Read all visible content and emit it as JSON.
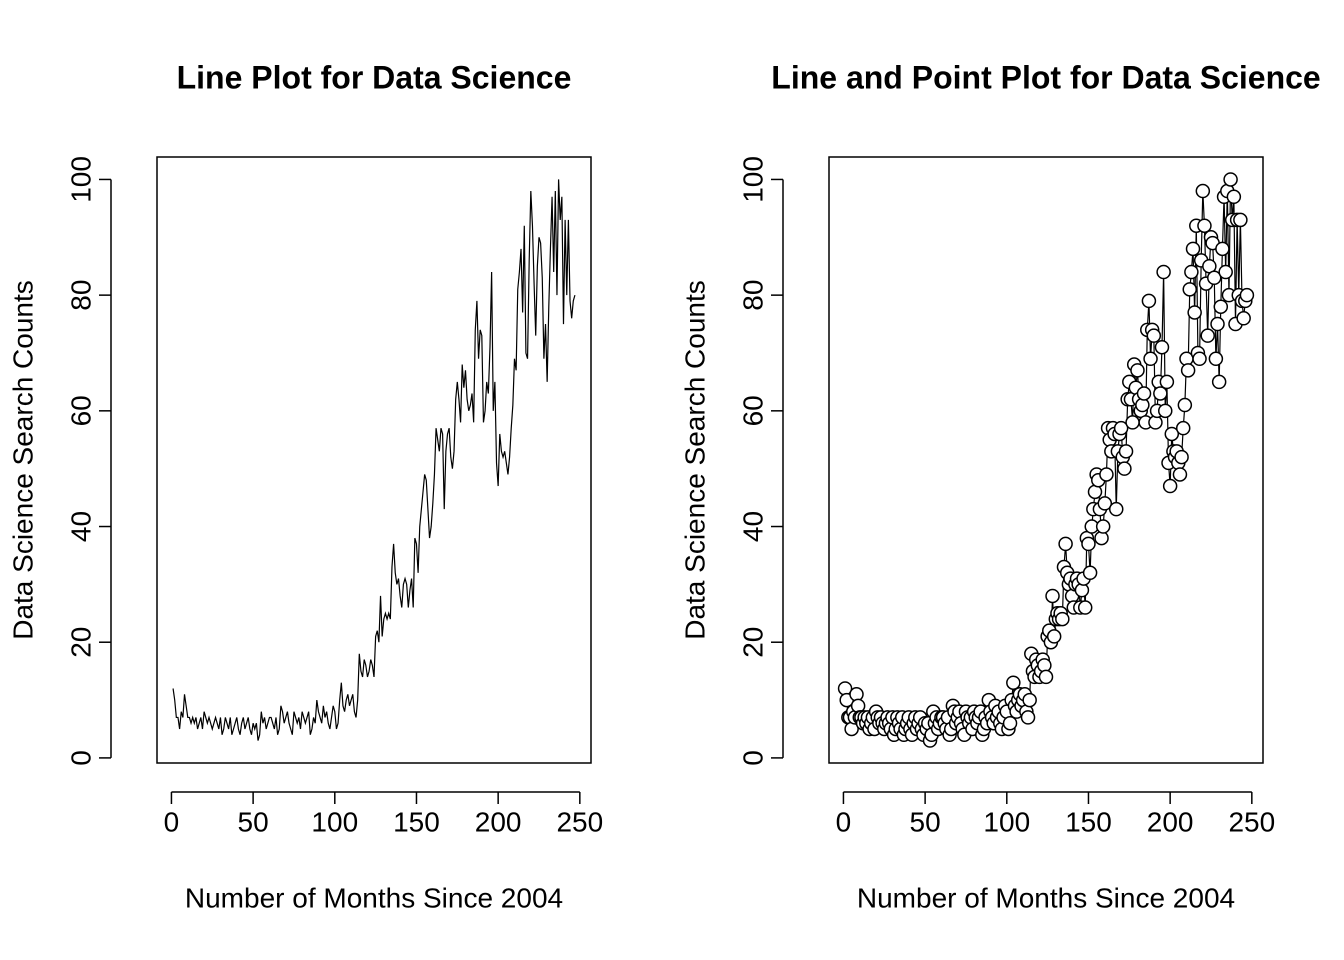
{
  "chart_data": [
    {
      "type": "line",
      "title": "Line Plot for Data Science",
      "x_label": "Number of Months Since 2004",
      "y_label": "Data Science Search Counts",
      "x": [
        1,
        2,
        3,
        4,
        5,
        6,
        7,
        8,
        9,
        10,
        11,
        12,
        13,
        14,
        15,
        16,
        17,
        18,
        19,
        20,
        21,
        22,
        23,
        24,
        25,
        26,
        27,
        28,
        29,
        30,
        31,
        32,
        33,
        34,
        35,
        36,
        37,
        38,
        39,
        40,
        41,
        42,
        43,
        44,
        45,
        46,
        47,
        48,
        49,
        50,
        51,
        52,
        53,
        54,
        55,
        56,
        57,
        58,
        59,
        60,
        61,
        62,
        63,
        64,
        65,
        66,
        67,
        68,
        69,
        70,
        71,
        72,
        73,
        74,
        75,
        76,
        77,
        78,
        79,
        80,
        81,
        82,
        83,
        84,
        85,
        86,
        87,
        88,
        89,
        90,
        91,
        92,
        93,
        94,
        95,
        96,
        97,
        98,
        99,
        100,
        101,
        102,
        103,
        104,
        105,
        106,
        107,
        108,
        109,
        110,
        111,
        112,
        113,
        114,
        115,
        116,
        117,
        118,
        119,
        120,
        121,
        122,
        123,
        124,
        125,
        126,
        127,
        128,
        129,
        130,
        131,
        132,
        133,
        134,
        135,
        136,
        137,
        138,
        139,
        140,
        141,
        142,
        143,
        144,
        145,
        146,
        147,
        148,
        149,
        150,
        151,
        152,
        153,
        154,
        155,
        156,
        157,
        158,
        159,
        160,
        161,
        162,
        163,
        164,
        165,
        166,
        167,
        168,
        169,
        170,
        171,
        172,
        173,
        174,
        175,
        176,
        177,
        178,
        179,
        180,
        181,
        182,
        183,
        184,
        185,
        186,
        187,
        188,
        189,
        190,
        191,
        192,
        193,
        194,
        195,
        196,
        197,
        198,
        199,
        200,
        201,
        202,
        203,
        204,
        205,
        206,
        207,
        208,
        209,
        210,
        211,
        212,
        213,
        214,
        215,
        216,
        217,
        218,
        219,
        220,
        221,
        222,
        223,
        224,
        225,
        226,
        227,
        228,
        229,
        230,
        231,
        232,
        233,
        234,
        235,
        236,
        237,
        238,
        239,
        240,
        241,
        242,
        243,
        244,
        245,
        246,
        247
      ],
      "values": [
        12,
        10,
        7,
        7,
        5,
        8,
        7,
        11,
        9,
        7,
        7,
        6,
        7,
        6,
        7,
        5,
        6,
        7,
        5,
        8,
        7,
        6,
        7,
        6,
        5,
        6,
        7,
        6,
        5,
        7,
        4,
        5,
        7,
        6,
        5,
        7,
        4,
        5,
        6,
        7,
        5,
        4,
        6,
        7,
        5,
        6,
        7,
        5,
        4,
        6,
        5,
        6,
        3,
        4,
        8,
        6,
        7,
        5,
        6,
        7,
        7,
        6,
        5,
        7,
        4,
        5,
        9,
        8,
        6,
        7,
        8,
        6,
        5,
        4,
        8,
        7,
        6,
        7,
        5,
        8,
        7,
        6,
        7,
        8,
        4,
        5,
        7,
        6,
        10,
        8,
        7,
        6,
        9,
        7,
        8,
        6,
        5,
        7,
        9,
        8,
        5,
        6,
        10,
        13,
        9,
        8,
        10,
        11,
        9,
        10,
        11,
        8,
        7,
        10,
        18,
        15,
        14,
        17,
        16,
        14,
        15,
        17,
        16,
        14,
        21,
        22,
        20,
        28,
        21,
        24,
        25,
        24,
        25,
        24,
        33,
        37,
        32,
        30,
        31,
        28,
        26,
        30,
        31,
        30,
        26,
        29,
        31,
        26,
        38,
        37,
        32,
        40,
        43,
        46,
        49,
        48,
        43,
        38,
        40,
        44,
        49,
        57,
        55,
        53,
        57,
        56,
        43,
        53,
        56,
        57,
        52,
        50,
        53,
        62,
        65,
        62,
        58,
        68,
        64,
        67,
        62,
        60,
        61,
        63,
        58,
        74,
        79,
        69,
        74,
        73,
        58,
        60,
        65,
        63,
        71,
        84,
        60,
        65,
        51,
        47,
        56,
        53,
        52,
        53,
        51,
        49,
        52,
        57,
        61,
        69,
        67,
        81,
        84,
        88,
        77,
        92,
        70,
        69,
        86,
        98,
        92,
        82,
        73,
        85,
        90,
        89,
        83,
        69,
        75,
        65,
        78,
        88,
        97,
        84,
        98,
        80,
        100,
        93,
        97,
        75,
        93,
        80,
        93,
        79,
        76,
        79,
        80
      ],
      "color": "#000000",
      "xlim": [
        -8.84,
        256.84
      ],
      "ylim": [
        -0.88,
        103.88
      ],
      "xticks": [
        0,
        50,
        100,
        150,
        200,
        250
      ],
      "yticks": [
        0,
        20,
        40,
        60,
        80,
        100
      ]
    },
    {
      "type": "line",
      "points": true,
      "title": "Line and Point Plot for Data Science",
      "x_label": "Number of Months Since 2004",
      "y_label": "Data Science Search Counts",
      "x": [
        1,
        2,
        3,
        4,
        5,
        6,
        7,
        8,
        9,
        10,
        11,
        12,
        13,
        14,
        15,
        16,
        17,
        18,
        19,
        20,
        21,
        22,
        23,
        24,
        25,
        26,
        27,
        28,
        29,
        30,
        31,
        32,
        33,
        34,
        35,
        36,
        37,
        38,
        39,
        40,
        41,
        42,
        43,
        44,
        45,
        46,
        47,
        48,
        49,
        50,
        51,
        52,
        53,
        54,
        55,
        56,
        57,
        58,
        59,
        60,
        61,
        62,
        63,
        64,
        65,
        66,
        67,
        68,
        69,
        70,
        71,
        72,
        73,
        74,
        75,
        76,
        77,
        78,
        79,
        80,
        81,
        82,
        83,
        84,
        85,
        86,
        87,
        88,
        89,
        90,
        91,
        92,
        93,
        94,
        95,
        96,
        97,
        98,
        99,
        100,
        101,
        102,
        103,
        104,
        105,
        106,
        107,
        108,
        109,
        110,
        111,
        112,
        113,
        114,
        115,
        116,
        117,
        118,
        119,
        120,
        121,
        122,
        123,
        124,
        125,
        126,
        127,
        128,
        129,
        130,
        131,
        132,
        133,
        134,
        135,
        136,
        137,
        138,
        139,
        140,
        141,
        142,
        143,
        144,
        145,
        146,
        147,
        148,
        149,
        150,
        151,
        152,
        153,
        154,
        155,
        156,
        157,
        158,
        159,
        160,
        161,
        162,
        163,
        164,
        165,
        166,
        167,
        168,
        169,
        170,
        171,
        172,
        173,
        174,
        175,
        176,
        177,
        178,
        179,
        180,
        181,
        182,
        183,
        184,
        185,
        186,
        187,
        188,
        189,
        190,
        191,
        192,
        193,
        194,
        195,
        196,
        197,
        198,
        199,
        200,
        201,
        202,
        203,
        204,
        205,
        206,
        207,
        208,
        209,
        210,
        211,
        212,
        213,
        214,
        215,
        216,
        217,
        218,
        219,
        220,
        221,
        222,
        223,
        224,
        225,
        226,
        227,
        228,
        229,
        230,
        231,
        232,
        233,
        234,
        235,
        236,
        237,
        238,
        239,
        240,
        241,
        242,
        243,
        244,
        245,
        246,
        247
      ],
      "values": [
        12,
        10,
        7,
        7,
        5,
        8,
        7,
        11,
        9,
        7,
        7,
        6,
        7,
        6,
        7,
        5,
        6,
        7,
        5,
        8,
        7,
        6,
        7,
        6,
        5,
        6,
        7,
        6,
        5,
        7,
        4,
        5,
        7,
        6,
        5,
        7,
        4,
        5,
        6,
        7,
        5,
        4,
        6,
        7,
        5,
        6,
        7,
        5,
        4,
        6,
        5,
        6,
        3,
        4,
        8,
        6,
        7,
        5,
        6,
        7,
        7,
        6,
        5,
        7,
        4,
        5,
        9,
        8,
        6,
        7,
        8,
        6,
        5,
        4,
        8,
        7,
        6,
        7,
        5,
        8,
        7,
        6,
        7,
        8,
        4,
        5,
        7,
        6,
        10,
        8,
        7,
        6,
        9,
        7,
        8,
        6,
        5,
        7,
        9,
        8,
        5,
        6,
        10,
        13,
        9,
        8,
        10,
        11,
        9,
        10,
        11,
        8,
        7,
        10,
        18,
        15,
        14,
        17,
        16,
        14,
        15,
        17,
        16,
        14,
        21,
        22,
        20,
        28,
        21,
        24,
        25,
        24,
        25,
        24,
        33,
        37,
        32,
        30,
        31,
        28,
        26,
        30,
        31,
        30,
        26,
        29,
        31,
        26,
        38,
        37,
        32,
        40,
        43,
        46,
        49,
        48,
        43,
        38,
        40,
        44,
        49,
        57,
        55,
        53,
        57,
        56,
        43,
        53,
        56,
        57,
        52,
        50,
        53,
        62,
        65,
        62,
        58,
        68,
        64,
        67,
        62,
        60,
        61,
        63,
        58,
        74,
        79,
        69,
        74,
        73,
        58,
        60,
        65,
        63,
        71,
        84,
        60,
        65,
        51,
        47,
        56,
        53,
        52,
        53,
        51,
        49,
        52,
        57,
        61,
        69,
        67,
        81,
        84,
        88,
        77,
        92,
        70,
        69,
        86,
        98,
        92,
        82,
        73,
        85,
        90,
        89,
        83,
        69,
        75,
        65,
        78,
        88,
        97,
        84,
        98,
        80,
        100,
        93,
        97,
        75,
        93,
        80,
        93,
        79,
        76,
        79,
        80
      ],
      "color": "#000000",
      "xlim": [
        -8.84,
        256.84
      ],
      "ylim": [
        -0.88,
        103.88
      ],
      "xticks": [
        0,
        50,
        100,
        150,
        200,
        250
      ],
      "yticks": [
        0,
        20,
        40,
        60,
        80,
        100
      ]
    }
  ]
}
